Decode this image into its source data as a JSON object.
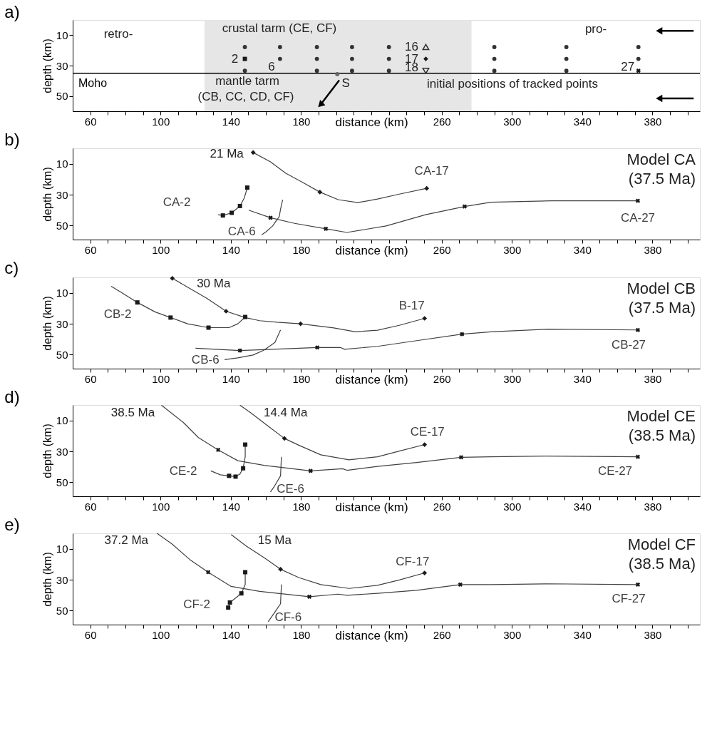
{
  "chart_data": [
    {
      "type": "line",
      "title": "a)",
      "xlabel": "distance (km)",
      "ylabel": "depth (km)",
      "grid": false,
      "xlim": [
        50,
        407
      ],
      "ylim": [
        60,
        0
      ],
      "yticks": [
        10,
        30,
        50
      ],
      "xticks": [
        60,
        {
          "value": 70,
          "label": null
        },
        {
          "value": 80,
          "label": null
        },
        {
          "value": 90,
          "label": null
        },
        100,
        {
          "value": 110,
          "label": null
        },
        {
          "value": 120,
          "label": null
        },
        {
          "value": 130,
          "label": null
        },
        140,
        {
          "value": 150,
          "label": null
        },
        {
          "value": 160,
          "label": null
        },
        {
          "value": 170,
          "label": null
        },
        180,
        {
          "value": 190,
          "label": null
        },
        {
          "value": 200,
          "label": null
        },
        {
          "value": 210,
          "label": null
        },
        {
          "value": 220,
          "label": null
        },
        {
          "value": 230,
          "label": null
        },
        {
          "value": 240,
          "label": null
        },
        {
          "value": 250,
          "label": null
        },
        260,
        {
          "value": 270,
          "label": null
        },
        {
          "value": 280,
          "label": null
        },
        {
          "value": 290,
          "label": null
        },
        300,
        {
          "value": 310,
          "label": null
        },
        {
          "value": 320,
          "label": null
        },
        {
          "value": 330,
          "label": null
        },
        340,
        {
          "value": 350,
          "label": null
        },
        {
          "value": 360,
          "label": null
        },
        {
          "value": 370,
          "label": null
        },
        380,
        {
          "value": 390,
          "label": null
        },
        {
          "value": 400,
          "label": null
        }
      ],
      "bands": [
        {
          "axis": "x",
          "from": 125,
          "to": 277,
          "label": null,
          "color": "#e6e6e6"
        }
      ],
      "ref_lines": [
        {
          "axis": "y",
          "value": 35,
          "label": "Moho",
          "color": "#000000"
        }
      ],
      "series": [
        {
          "type": "scatter",
          "marker": "circle",
          "color": "#333333",
          "x": [
            148,
            168,
            189,
            209,
            230,
            290,
            331,
            372,
            168,
            189,
            209,
            230,
            290,
            331,
            372,
            148,
            189,
            209,
            230,
            290,
            331
          ],
          "values": [
            17.8,
            17.8,
            17.8,
            17.8,
            17.8,
            17.8,
            17.8,
            17.8,
            25.6,
            25.6,
            25.6,
            25.6,
            25.6,
            25.6,
            25.6,
            33.4,
            33.4,
            33.4,
            33.4,
            33.4,
            33.4
          ]
        },
        {
          "type": "scatter",
          "marker": "square",
          "color": "#1a1a1a",
          "x": [
            148
          ],
          "values": [
            25.6
          ]
        },
        {
          "type": "scatter",
          "marker": "triangle",
          "color": "#333333",
          "x": [
            251
          ],
          "values": [
            17.8
          ]
        },
        {
          "type": "scatter",
          "marker": "diamond",
          "color": "#1a1a1a",
          "x": [
            251
          ],
          "values": [
            25.6
          ]
        },
        {
          "type": "scatter",
          "marker": "triangle-down",
          "color": "#333333",
          "x": [
            251
          ],
          "values": [
            33.4
          ]
        },
        {
          "type": "scatter",
          "marker": "cross",
          "color": "#1a1a1a",
          "x": [
            372
          ],
          "values": [
            33.4
          ]
        },
        {
          "type": "scatter",
          "marker": "circle",
          "color": "#666666",
          "x": [
            200.6
          ],
          "values": [
            35.6
          ]
        }
      ],
      "annotations": [
        "retro-",
        "crustal tarm (CE, CF)",
        "pro-",
        "6",
        "mantle tarm",
        "(CB, CC, CD, CF)",
        "initial positions of tracked points",
        {
          "text": "2",
          "x": 148,
          "y": 25.6
        },
        {
          "text": "16",
          "x": 251,
          "y": 17.8
        },
        {
          "text": "17",
          "x": 251,
          "y": 25.6
        },
        {
          "text": "18",
          "x": 251,
          "y": 33.4
        },
        {
          "text": "27",
          "x": 372,
          "y": 33.4
        },
        {
          "text": "S",
          "x": 200.6,
          "y": 35.6
        }
      ]
    },
    {
      "type": "line",
      "title": "b)",
      "xlabel": "distance (km)",
      "ylabel": "depth (km)",
      "grid": false,
      "xlim": [
        50,
        407
      ],
      "ylim": [
        59,
        0
      ],
      "yticks": [
        10,
        30,
        50
      ],
      "xticks": [
        60,
        {
          "value": 70,
          "label": null
        },
        {
          "value": 80,
          "label": null
        },
        {
          "value": 90,
          "label": null
        },
        100,
        {
          "value": 110,
          "label": null
        },
        {
          "value": 120,
          "label": null
        },
        {
          "value": 130,
          "label": null
        },
        140,
        {
          "value": 150,
          "label": null
        },
        {
          "value": 160,
          "label": null
        },
        {
          "value": 170,
          "label": null
        },
        180,
        {
          "value": 190,
          "label": null
        },
        {
          "value": 200,
          "label": null
        },
        {
          "value": 210,
          "label": null
        },
        {
          "value": 220,
          "label": null
        },
        {
          "value": 230,
          "label": null
        },
        {
          "value": 240,
          "label": null
        },
        {
          "value": 250,
          "label": null
        },
        260,
        {
          "value": 270,
          "label": null
        },
        {
          "value": 280,
          "label": null
        },
        {
          "value": 290,
          "label": null
        },
        300,
        {
          "value": 310,
          "label": null
        },
        {
          "value": 320,
          "label": null
        },
        {
          "value": 330,
          "label": null
        },
        340,
        {
          "value": 350,
          "label": null
        },
        {
          "value": 360,
          "label": null
        },
        {
          "value": 370,
          "label": null
        },
        380,
        {
          "value": 390,
          "label": null
        },
        {
          "value": 400,
          "label": null
        }
      ],
      "series": [
        {
          "type": "line",
          "name": "CA-17",
          "color": "#404040",
          "x": [
            251.5,
            235.9,
            223.5,
            212.3,
            201.1,
            190.7,
            181.2,
            171.3,
            162.6,
            152.7
          ],
          "values": [
            25.9,
            29.6,
            32.8,
            35.1,
            33.2,
            28.3,
            22.2,
            16.1,
            8.8,
            2.7
          ]
        },
        {
          "type": "scatter",
          "marker": "diamond",
          "color": "#1a1a1a",
          "x": [
            251.5,
            190.7,
            152.7
          ],
          "values": [
            25.9,
            28.3,
            2.7
          ]
        },
        {
          "type": "line",
          "name": "CA-27",
          "color": "#404040",
          "x": [
            371.7,
            322.8,
            288.0,
            273.1,
            250.8,
            228.4,
            206.1,
            194.1,
            176.3,
            162.6,
            150.2
          ],
          "values": [
            33.9,
            33.9,
            34.9,
            37.6,
            42.9,
            50.2,
            54.4,
            52.0,
            48.5,
            44.9,
            40.0
          ]
        },
        {
          "type": "scatter",
          "marker": "cross",
          "color": "#1a1a1a",
          "x": [
            371.7,
            273.1,
            194.1,
            162.6
          ],
          "values": [
            33.9,
            37.6,
            52.0,
            44.9
          ]
        },
        {
          "type": "line",
          "name": "CA-2",
          "color": "#404040",
          "x": [
            149.4,
            147.7,
            145.2,
            140.5,
            135.5,
            132.8
          ],
          "values": [
            25.4,
            32.0,
            37.3,
            41.7,
            43.4,
            42.9
          ]
        },
        {
          "type": "scatter",
          "marker": "square",
          "color": "#1a1a1a",
          "x": [
            149.4,
            145.2,
            140.5,
            135.5
          ],
          "values": [
            25.4,
            37.3,
            41.7,
            43.4
          ]
        },
        {
          "type": "line",
          "name": "CA-6",
          "color": "#404040",
          "x": [
            169.5,
            168.3,
            167.6,
            163.8,
            160.1,
            157.6
          ],
          "values": [
            33.2,
            39.3,
            44.1,
            50.2,
            53.9,
            55.9
          ]
        }
      ],
      "annotations": [
        "Model CA",
        "(37.5 Ma)",
        {
          "text": "21 Ma",
          "x": 152.7,
          "y": 2.7
        }
      ]
    },
    {
      "type": "line",
      "title": "c)",
      "xlabel": "distance (km)",
      "ylabel": "depth (km)",
      "grid": false,
      "xlim": [
        50,
        407
      ],
      "ylim": [
        59,
        0
      ],
      "yticks": [
        10,
        30,
        50
      ],
      "xticks": [
        60,
        {
          "value": 70,
          "label": null
        },
        {
          "value": 80,
          "label": null
        },
        {
          "value": 90,
          "label": null
        },
        100,
        {
          "value": 110,
          "label": null
        },
        {
          "value": 120,
          "label": null
        },
        {
          "value": 130,
          "label": null
        },
        140,
        {
          "value": 150,
          "label": null
        },
        {
          "value": 160,
          "label": null
        },
        {
          "value": 170,
          "label": null
        },
        180,
        {
          "value": 190,
          "label": null
        },
        {
          "value": 200,
          "label": null
        },
        {
          "value": 210,
          "label": null
        },
        {
          "value": 220,
          "label": null
        },
        {
          "value": 230,
          "label": null
        },
        {
          "value": 240,
          "label": null
        },
        {
          "value": 250,
          "label": null
        },
        260,
        {
          "value": 270,
          "label": null
        },
        {
          "value": 280,
          "label": null
        },
        {
          "value": 290,
          "label": null
        },
        300,
        {
          "value": 310,
          "label": null
        },
        {
          "value": 320,
          "label": null
        },
        {
          "value": 330,
          "label": null
        },
        340,
        {
          "value": 350,
          "label": null
        },
        {
          "value": 360,
          "label": null
        },
        {
          "value": 370,
          "label": null
        },
        380,
        {
          "value": 390,
          "label": null
        },
        {
          "value": 400,
          "label": null
        }
      ],
      "series": [
        {
          "type": "line",
          "name": "B-17",
          "color": "#404040",
          "x": [
            250.3,
            235.9,
            223.5,
            211.0,
            198.6,
            179.7,
            166.3,
            156.4,
            148.2,
            137.3,
            126.6,
            115.4,
            106.7
          ],
          "values": [
            26.5,
            31.0,
            34.2,
            35.2,
            32.7,
            30.0,
            29.0,
            28.0,
            26.0,
            21.9,
            13.7,
            6.3,
            0.6
          ]
        },
        {
          "type": "scatter",
          "marker": "diamond",
          "color": "#1a1a1a",
          "x": [
            250.3,
            179.7,
            137.3,
            106.7
          ],
          "values": [
            26.5,
            30.0,
            21.9,
            0.6
          ]
        },
        {
          "type": "line",
          "name": "CB-27",
          "color": "#404040",
          "x": [
            371.7,
            320.3,
            288.0,
            271.6,
            245.8,
            223.5,
            204.8,
            202.3,
            189.2,
            168.8,
            145.2,
            119.9
          ],
          "values": [
            34.0,
            33.5,
            35.2,
            36.7,
            40.9,
            44.6,
            46.5,
            45.3,
            45.3,
            46.3,
            47.3,
            45.8
          ]
        },
        {
          "type": "scatter",
          "marker": "cross",
          "color": "#1a1a1a",
          "x": [
            371.7,
            271.6,
            189.2,
            145.2
          ],
          "values": [
            34.0,
            36.7,
            45.3,
            47.3
          ]
        },
        {
          "type": "line",
          "name": "CB-2",
          "color": "#404040",
          "x": [
            148.2,
            144.0,
            139.0,
            127.3,
            115.4,
            105.7,
            96.8,
            86.8,
            78.1,
            71.9
          ],
          "values": [
            25.6,
            30.0,
            32.5,
            32.5,
            30.0,
            26.0,
            22.3,
            16.2,
            10.0,
            5.8
          ]
        },
        {
          "type": "scatter",
          "marker": "square",
          "color": "#1a1a1a",
          "x": [
            148.2,
            127.3,
            105.7,
            86.8
          ],
          "values": [
            25.6,
            32.5,
            26.0,
            16.2
          ]
        },
        {
          "type": "line",
          "name": "CB-6",
          "color": "#404040",
          "x": [
            168.3,
            165.1,
            158.9,
            152.7,
            144.0,
            136.5
          ],
          "values": [
            34.0,
            42.1,
            47.0,
            50.2,
            52.0,
            53.2
          ]
        }
      ],
      "annotations": [
        "Model CB",
        "(37.5 Ma)",
        {
          "text": "30 Ma",
          "x": 106.7,
          "y": 0.6
        }
      ]
    },
    {
      "type": "line",
      "title": "d)",
      "xlabel": "distance (km)",
      "ylabel": "depth (km)",
      "grid": false,
      "xlim": [
        50,
        407
      ],
      "ylim": [
        59,
        0
      ],
      "yticks": [
        10,
        30,
        50
      ],
      "xticks": [
        60,
        {
          "value": 70,
          "label": null
        },
        {
          "value": 80,
          "label": null
        },
        {
          "value": 90,
          "label": null
        },
        100,
        {
          "value": 110,
          "label": null
        },
        {
          "value": 120,
          "label": null
        },
        {
          "value": 130,
          "label": null
        },
        140,
        {
          "value": 150,
          "label": null
        },
        {
          "value": 160,
          "label": null
        },
        {
          "value": 170,
          "label": null
        },
        180,
        {
          "value": 190,
          "label": null
        },
        {
          "value": 200,
          "label": null
        },
        {
          "value": 210,
          "label": null
        },
        {
          "value": 220,
          "label": null
        },
        {
          "value": 230,
          "label": null
        },
        {
          "value": 240,
          "label": null
        },
        {
          "value": 250,
          "label": null
        },
        260,
        {
          "value": 270,
          "label": null
        },
        {
          "value": 280,
          "label": null
        },
        {
          "value": 290,
          "label": null
        },
        300,
        {
          "value": 310,
          "label": null
        },
        {
          "value": 320,
          "label": null
        },
        {
          "value": 330,
          "label": null
        },
        340,
        {
          "value": 350,
          "label": null
        },
        {
          "value": 360,
          "label": null
        },
        {
          "value": 370,
          "label": null
        },
        380,
        {
          "value": 390,
          "label": null
        },
        {
          "value": 400,
          "label": null
        }
      ],
      "series": [
        {
          "type": "line",
          "name": "CE-17",
          "color": "#404040",
          "x": [
            250.3,
            235.9,
            223.5,
            207.3,
            191.2,
            178.7,
            170.5,
            161.3,
            151.4,
            145.2
          ],
          "values": [
            25.6,
            29.8,
            33.5,
            35.4,
            32.2,
            26.0,
            21.6,
            13.7,
            5.1,
            0.1
          ]
        },
        {
          "type": "scatter",
          "marker": "diamond",
          "color": "#1a1a1a",
          "x": [
            250.3,
            170.5
          ],
          "values": [
            25.6,
            21.6
          ]
        },
        {
          "type": "line",
          "name": "CE-27",
          "color": "#404040",
          "x": [
            371.7,
            320.3,
            288.0,
            271.1,
            245.8,
            223.5,
            206.1,
            203.6,
            185.4,
            158.9,
            144.0,
            132.8,
            121.6,
            112.9,
            100.5
          ],
          "values": [
            33.5,
            33.0,
            33.5,
            33.8,
            37.2,
            39.7,
            42.2,
            41.2,
            42.6,
            39.0,
            36.0,
            29.0,
            21.1,
            11.2,
            0.1
          ]
        },
        {
          "type": "scatter",
          "marker": "cross",
          "color": "#1a1a1a",
          "x": [
            371.7,
            271.1,
            185.4,
            132.8
          ],
          "values": [
            33.5,
            33.8,
            42.6,
            29.0
          ]
        },
        {
          "type": "line",
          "name": "CE-2",
          "color": "#404040",
          "x": [
            148.2,
            148.2,
            147.0,
            145.2,
            142.7,
            139.0,
            134.0,
            128.6
          ],
          "values": [
            25.6,
            33.5,
            40.9,
            44.6,
            46.3,
            45.8,
            45.1,
            42.6
          ]
        },
        {
          "type": "scatter",
          "marker": "square",
          "color": "#1a1a1a",
          "x": [
            148.2,
            147.0,
            142.7,
            139.0
          ],
          "values": [
            25.6,
            40.9,
            46.3,
            45.8
          ]
        },
        {
          "type": "line",
          "name": "CE-6",
          "color": "#404040",
          "x": [
            168.8,
            168.3,
            165.1,
            162.6
          ],
          "values": [
            33.5,
            45.8,
            52.0,
            56.2
          ]
        }
      ],
      "annotations": [
        "Model CE",
        "(38.5 Ma)",
        {
          "text": "38.5 Ma",
          "x": 100.5,
          "y": 0.1
        },
        {
          "text": "14.4 Ma",
          "x": 145.2,
          "y": 0.1
        }
      ]
    },
    {
      "type": "line",
      "title": "e)",
      "xlabel": "distance (km)",
      "ylabel": "depth (km)",
      "grid": false,
      "xlim": [
        50,
        407
      ],
      "ylim": [
        59,
        0
      ],
      "yticks": [
        10,
        30,
        50
      ],
      "xticks": [
        60,
        {
          "value": 70,
          "label": null
        },
        {
          "value": 80,
          "label": null
        },
        {
          "value": 90,
          "label": null
        },
        100,
        {
          "value": 110,
          "label": null
        },
        {
          "value": 120,
          "label": null
        },
        {
          "value": 130,
          "label": null
        },
        140,
        {
          "value": 150,
          "label": null
        },
        {
          "value": 160,
          "label": null
        },
        {
          "value": 170,
          "label": null
        },
        180,
        {
          "value": 190,
          "label": null
        },
        {
          "value": 200,
          "label": null
        },
        {
          "value": 210,
          "label": null
        },
        {
          "value": 220,
          "label": null
        },
        {
          "value": 230,
          "label": null
        },
        {
          "value": 240,
          "label": null
        },
        {
          "value": 250,
          "label": null
        },
        260,
        {
          "value": 270,
          "label": null
        },
        {
          "value": 280,
          "label": null
        },
        {
          "value": 290,
          "label": null
        },
        300,
        {
          "value": 310,
          "label": null
        },
        {
          "value": 320,
          "label": null
        },
        {
          "value": 330,
          "label": null
        },
        340,
        {
          "value": 350,
          "label": null
        },
        {
          "value": 360,
          "label": null
        },
        {
          "value": 370,
          "label": null
        },
        380,
        {
          "value": 390,
          "label": null
        },
        {
          "value": 400,
          "label": null
        }
      ],
      "series": [
        {
          "type": "line",
          "name": "CF-17",
          "color": "#404040",
          "x": [
            250.3,
            235.9,
            223.5,
            207.3,
            191.2,
            178.7,
            168.3,
            158.9,
            148.9,
            140.2
          ],
          "values": [
            25.6,
            30.1,
            33.6,
            35.6,
            33.1,
            28.6,
            23.2,
            15.7,
            8.3,
            0.8
          ]
        },
        {
          "type": "scatter",
          "marker": "diamond",
          "color": "#1a1a1a",
          "x": [
            250.3,
            168.3
          ],
          "values": [
            25.6,
            23.2
          ]
        },
        {
          "type": "line",
          "name": "CF-27",
          "color": "#404040",
          "x": [
            371.7,
            320.3,
            288.0,
            270.6,
            245.8,
            223.5,
            206.1,
            201.1,
            184.7,
            156.4,
            140.2,
            127.1,
            116.6,
            106.7,
            98.0
          ],
          "values": [
            33.1,
            32.6,
            33.1,
            33.1,
            36.8,
            38.8,
            40.0,
            39.3,
            41.0,
            37.5,
            34.3,
            25.1,
            16.9,
            7.0,
            0.0
          ]
        },
        {
          "type": "scatter",
          "marker": "cross",
          "color": "#1a1a1a",
          "x": [
            371.7,
            270.6,
            184.7,
            127.1
          ],
          "values": [
            33.1,
            33.1,
            41.0,
            25.1
          ]
        },
        {
          "type": "line",
          "name": "CF-2",
          "color": "#404040",
          "x": [
            148.2,
            148.2,
            146.0,
            142.7,
            139.5,
            138.5
          ],
          "values": [
            25.1,
            33.1,
            38.8,
            41.8,
            44.7,
            48.0
          ]
        },
        {
          "type": "scatter",
          "marker": "square",
          "color": "#1a1a1a",
          "x": [
            148.2,
            146.0,
            139.5,
            138.5
          ],
          "values": [
            25.1,
            38.8,
            44.7,
            48.0
          ]
        },
        {
          "type": "line",
          "name": "CF-6",
          "color": "#404040",
          "x": [
            168.8,
            168.3,
            165.1,
            161.3
          ],
          "values": [
            33.1,
            45.5,
            50.9,
            57.1
          ]
        }
      ],
      "annotations": [
        "Model CF",
        "(38.5 Ma)",
        {
          "text": "37.2 Ma",
          "x": 98.0,
          "y": 0.0
        },
        {
          "text": "15 Ma",
          "x": 140.2,
          "y": 0.8
        }
      ]
    }
  ]
}
